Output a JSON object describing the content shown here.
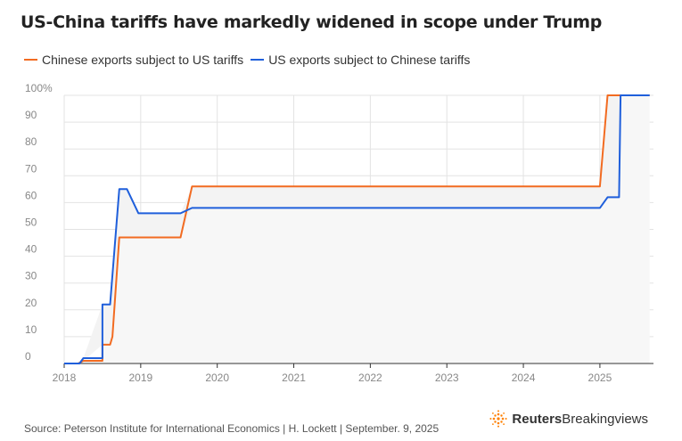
{
  "title": "US-China tariffs have markedly widened in scope under Trump",
  "footer": {
    "source": "Source: Peterson Institute for International Economics | H. Lockett | September. 9, 2025"
  },
  "brand": {
    "name_bold": "Reuters",
    "name_regular": "Breakingviews",
    "icon": "reuters-dot-logo-icon",
    "color": "#ff8000"
  },
  "colors": {
    "chinese_exports": "#f26b21",
    "us_exports": "#1f5fdb",
    "fill": "#f3f3f3",
    "grid": "#e3e3e3",
    "axis": "#333333",
    "tick_text": "#888888"
  },
  "chart_data": {
    "type": "line",
    "title": "US-China tariffs have markedly widened in scope under Trump",
    "xlabel": "",
    "ylabel": "",
    "xlim": [
      2018.0,
      2025.7
    ],
    "ylim": [
      0,
      100
    ],
    "y_ticks": [
      0,
      10,
      20,
      30,
      40,
      50,
      60,
      70,
      80,
      90,
      100
    ],
    "y_tick_labels": [
      "0",
      "10",
      "20",
      "30",
      "40",
      "50",
      "60",
      "70",
      "80",
      "90",
      "100%"
    ],
    "x_ticks": [
      2018,
      2019,
      2020,
      2021,
      2022,
      2023,
      2024,
      2025
    ],
    "x_tick_labels": [
      "2018",
      "2019",
      "2020",
      "2021",
      "2022",
      "2023",
      "2024",
      "2025"
    ],
    "grid": true,
    "legend_position": "top-left",
    "shaded_between_series": true,
    "series": [
      {
        "name": "Chinese exports subject to US tariffs",
        "color": "#f26b21",
        "points": [
          [
            2018.0,
            0
          ],
          [
            2018.18,
            0
          ],
          [
            2018.25,
            1
          ],
          [
            2018.5,
            1
          ],
          [
            2018.5,
            7
          ],
          [
            2018.6,
            7
          ],
          [
            2018.63,
            10
          ],
          [
            2018.72,
            47
          ],
          [
            2019.52,
            47
          ],
          [
            2019.67,
            66
          ],
          [
            2023.0,
            66
          ],
          [
            2025.0,
            66
          ],
          [
            2025.1,
            100
          ],
          [
            2025.65,
            100
          ]
        ]
      },
      {
        "name": "US exports subject to Chinese tariffs",
        "color": "#1f5fdb",
        "points": [
          [
            2018.0,
            0
          ],
          [
            2018.2,
            0
          ],
          [
            2018.25,
            2
          ],
          [
            2018.5,
            2
          ],
          [
            2018.5,
            22
          ],
          [
            2018.6,
            22
          ],
          [
            2018.72,
            65
          ],
          [
            2018.82,
            65
          ],
          [
            2018.97,
            56
          ],
          [
            2019.52,
            56
          ],
          [
            2019.67,
            58
          ],
          [
            2025.0,
            58
          ],
          [
            2025.1,
            62
          ],
          [
            2025.25,
            62
          ],
          [
            2025.27,
            100
          ],
          [
            2025.65,
            100
          ]
        ]
      }
    ]
  }
}
